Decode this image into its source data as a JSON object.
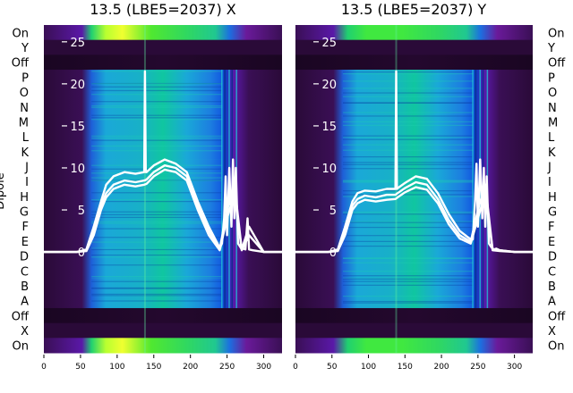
{
  "figure": {
    "y_axis_label": "Dipole"
  },
  "chart_data": [
    {
      "type": "heatmap",
      "title": "13.5 (LBE5=2037) X",
      "xlim": [
        0,
        325
      ],
      "x_ticks": [
        0,
        50,
        100,
        150,
        200,
        250,
        300
      ],
      "dipole_labels_top_to_bottom": [
        "On",
        "Y",
        "Off",
        "P",
        "O",
        "N",
        "M",
        "L",
        "K",
        "J",
        "I",
        "H",
        "G",
        "F",
        "E",
        "D",
        "C",
        "B",
        "A",
        "Off",
        "X",
        "On"
      ],
      "overlay_ylim": [
        -12,
        27
      ],
      "overlay_y_ticks": [
        0,
        5,
        10,
        15,
        20,
        25
      ],
      "colormap": [
        "#2a0a38",
        "#6a1a9a",
        "#1c6fe0",
        "#1fb7c4",
        "#20d070",
        "#50e830",
        "#e8ff30"
      ],
      "overlay_line_color": "#ffffff",
      "overlay_series": [
        {
          "x": [
            0,
            45,
            58,
            68,
            78,
            85,
            95,
            110,
            125,
            137,
            138,
            139,
            140,
            150,
            165,
            180,
            195,
            210,
            225,
            240,
            243,
            246,
            248,
            250,
            253,
            256,
            258,
            260,
            262,
            265,
            268,
            270,
            272,
            275,
            278,
            280,
            285,
            300,
            325
          ],
          "y": [
            0,
            0,
            0.3,
            3,
            6,
            8,
            9,
            9.5,
            9.3,
            9.5,
            21.5,
            9.5,
            9.5,
            10.3,
            11,
            10.5,
            9.5,
            6,
            3,
            0.5,
            1,
            4,
            9,
            2,
            10,
            3,
            11,
            4,
            10,
            1,
            0.6,
            0.3,
            0.4,
            0.3,
            4,
            0.3,
            0.2,
            0,
            0
          ]
        },
        {
          "x": [
            0,
            45,
            58,
            68,
            78,
            85,
            95,
            110,
            125,
            137,
            140,
            150,
            165,
            180,
            195,
            210,
            225,
            240,
            250,
            260,
            270,
            280,
            300,
            325
          ],
          "y": [
            0,
            0,
            0.2,
            2.5,
            5.5,
            7,
            8,
            8.5,
            8.3,
            8.5,
            8.6,
            9.5,
            10.3,
            10,
            9,
            5.5,
            2.5,
            0.3,
            5,
            8,
            0.3,
            3,
            0,
            0
          ]
        },
        {
          "x": [
            0,
            45,
            58,
            68,
            78,
            85,
            95,
            110,
            125,
            137,
            140,
            150,
            165,
            180,
            195,
            210,
            225,
            240,
            250,
            260,
            270,
            280,
            300,
            325
          ],
          "y": [
            0,
            0,
            0.1,
            2,
            5,
            6.5,
            7.5,
            8,
            7.8,
            8,
            8.1,
            9,
            9.8,
            9.5,
            8.5,
            5,
            2,
            0.2,
            4,
            7,
            0.2,
            2,
            0,
            0
          ]
        }
      ]
    },
    {
      "type": "heatmap",
      "title": "13.5 (LBE5=2037) Y",
      "xlim": [
        0,
        325
      ],
      "x_ticks": [
        0,
        50,
        100,
        150,
        200,
        250,
        300
      ],
      "dipole_labels_top_to_bottom": [
        "On",
        "Y",
        "Off",
        "P",
        "O",
        "N",
        "M",
        "L",
        "K",
        "J",
        "I",
        "H",
        "G",
        "F",
        "E",
        "D",
        "C",
        "B",
        "A",
        "Off",
        "X",
        "On"
      ],
      "overlay_ylim": [
        -12,
        27
      ],
      "overlay_y_ticks": [
        0,
        5,
        10,
        15,
        20,
        25
      ],
      "colormap": [
        "#2a0a38",
        "#6a1a9a",
        "#1c6fe0",
        "#1fb7c4",
        "#20d070",
        "#50e830",
        "#e8ff30"
      ],
      "overlay_line_color": "#ffffff",
      "overlay_series": [
        {
          "x": [
            0,
            45,
            58,
            68,
            78,
            85,
            95,
            110,
            125,
            137,
            138,
            139,
            140,
            150,
            165,
            180,
            195,
            210,
            225,
            240,
            243,
            246,
            248,
            250,
            253,
            256,
            258,
            260,
            262,
            265,
            268,
            270,
            272,
            275,
            280,
            300,
            325
          ],
          "y": [
            0,
            0,
            0.3,
            3,
            6,
            7,
            7.3,
            7.2,
            7.5,
            7.5,
            21.5,
            7.5,
            7.6,
            8.2,
            9,
            8.7,
            7,
            4.5,
            2.5,
            1.5,
            1.5,
            6,
            10.5,
            3,
            11,
            4,
            10,
            3,
            9,
            1,
            0.6,
            0.4,
            0.3,
            0.4,
            0.2,
            0,
            0
          ]
        },
        {
          "x": [
            0,
            45,
            58,
            68,
            78,
            85,
            95,
            110,
            125,
            137,
            140,
            150,
            165,
            180,
            195,
            210,
            225,
            240,
            250,
            260,
            270,
            280,
            300,
            325
          ],
          "y": [
            0,
            0,
            0.2,
            2.5,
            5.5,
            6.3,
            6.7,
            6.5,
            6.8,
            6.8,
            7,
            7.6,
            8.3,
            8,
            6.3,
            3.8,
            2,
            1.2,
            5,
            8,
            0.3,
            0.2,
            0,
            0
          ]
        },
        {
          "x": [
            0,
            45,
            58,
            68,
            78,
            85,
            95,
            110,
            125,
            137,
            140,
            150,
            165,
            180,
            195,
            210,
            225,
            240,
            250,
            260,
            270,
            280,
            300,
            325
          ],
          "y": [
            0,
            0,
            0.1,
            2,
            5,
            5.8,
            6.2,
            6,
            6.2,
            6.3,
            6.5,
            7.1,
            7.7,
            7.4,
            5.8,
            3.3,
            1.6,
            1,
            4,
            7,
            0.2,
            0.1,
            0,
            0
          ]
        }
      ]
    }
  ]
}
